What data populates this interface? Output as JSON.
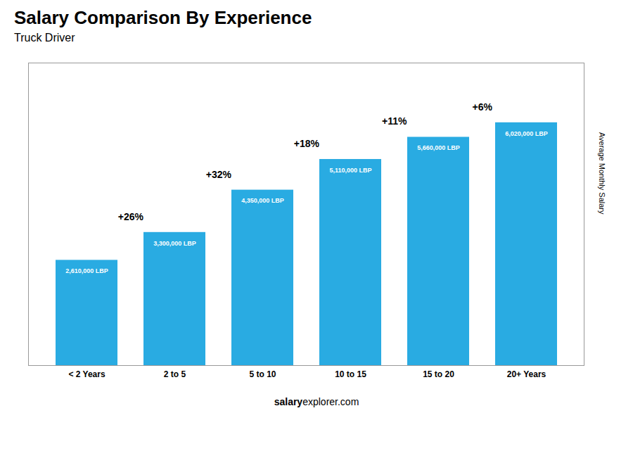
{
  "chart_data": {
    "type": "bar",
    "title": "Salary Comparison By Experience",
    "subtitle": "Truck Driver",
    "categories": [
      "< 2 Years",
      "2 to 5",
      "5 to 10",
      "10 to 15",
      "15 to 20",
      "20+ Years"
    ],
    "values": [
      2610000,
      3300000,
      4350000,
      5110000,
      5660000,
      6020000
    ],
    "value_labels": [
      "2,610,000 LBP",
      "3,300,000 LBP",
      "4,350,000 LBP",
      "5,110,000 LBP",
      "5,660,000 LBP",
      "6,020,000 LBP"
    ],
    "data_labels": true,
    "annotations": [
      "+26%",
      "+32%",
      "+18%",
      "+11%",
      "+6%"
    ],
    "ylabel": "Average Monthly Salary",
    "footer": [
      "salary",
      "explorer.com"
    ],
    "color": "#29ABE2",
    "ylim": [
      0,
      7500000
    ],
    "tick_labels": "x",
    "grid": false
  }
}
